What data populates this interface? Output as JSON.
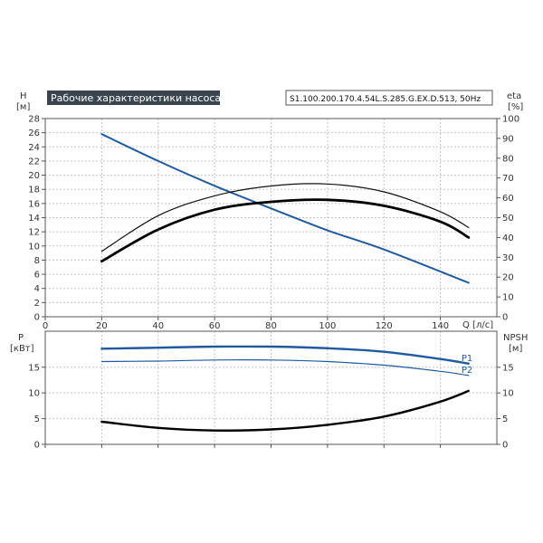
{
  "chart_data": [
    {
      "type": "line",
      "title": "Рабочие характеристики насоса",
      "subtitle": "S1.100.200.170.4.54L.S.285.G.EX.D.513, 50Hz",
      "xlabel": "Q [л/с]",
      "ylabel_left": "H",
      "ylabel_left_unit": "[м]",
      "ylabel_right": "eta",
      "ylabel_right_unit": "[%]",
      "xlim": [
        0,
        160
      ],
      "ylim_left": [
        0,
        28
      ],
      "ylim_right": [
        0,
        100
      ],
      "x_ticks": [
        0,
        20,
        40,
        60,
        80,
        100,
        120,
        140
      ],
      "y_left_ticks": [
        0,
        2,
        4,
        6,
        8,
        10,
        12,
        14,
        16,
        18,
        20,
        22,
        24,
        26,
        28
      ],
      "y_right_ticks": [
        0,
        10,
        20,
        30,
        40,
        50,
        60,
        70,
        80,
        90,
        100
      ],
      "grid": true,
      "series": [
        {
          "axis": "left",
          "color": "#1f5aa0",
          "width": 2,
          "x": [
            20,
            40,
            60,
            80,
            100,
            120,
            150
          ],
          "y": [
            25.8,
            22.0,
            18.5,
            15.3,
            12.2,
            9.5,
            4.8
          ]
        },
        {
          "axis": "right",
          "color": "#111111",
          "width": 1.2,
          "x": [
            20,
            40,
            60,
            80,
            100,
            120,
            140,
            150
          ],
          "y": [
            33,
            51,
            61,
            66,
            67,
            63,
            53,
            45
          ]
        },
        {
          "axis": "right",
          "color": "#000000",
          "width": 2.8,
          "x": [
            20,
            40,
            60,
            80,
            100,
            120,
            140,
            150
          ],
          "y": [
            28,
            44,
            54,
            58,
            59,
            56,
            48,
            40
          ]
        }
      ]
    },
    {
      "type": "line",
      "ylabel_left": "P",
      "ylabel_left_unit": "[кВт]",
      "ylabel_right": "NPSH",
      "ylabel_right_unit": "[м]",
      "xlim": [
        0,
        160
      ],
      "ylim_left": [
        0,
        22
      ],
      "ylim_right": [
        0,
        22
      ],
      "y_left_ticks": [
        0,
        5,
        10,
        15
      ],
      "y_right_ticks": [
        0,
        5,
        10,
        15
      ],
      "grid": true,
      "series": [
        {
          "name": "P1",
          "axis": "left",
          "color": "#1f5aa0",
          "width": 2.4,
          "x": [
            20,
            40,
            60,
            80,
            100,
            120,
            140,
            150
          ],
          "y": [
            18.6,
            18.8,
            19.0,
            19.0,
            18.7,
            18.0,
            16.6,
            15.7
          ]
        },
        {
          "name": "P2",
          "axis": "left",
          "color": "#1f5aa0",
          "width": 1.2,
          "x": [
            20,
            40,
            60,
            80,
            100,
            120,
            140,
            150
          ],
          "y": [
            16.1,
            16.2,
            16.4,
            16.4,
            16.1,
            15.4,
            14.2,
            13.4
          ]
        },
        {
          "axis": "right",
          "color": "#000000",
          "width": 2.4,
          "x": [
            20,
            40,
            60,
            80,
            100,
            120,
            140,
            150
          ],
          "y": [
            4.4,
            3.2,
            2.7,
            2.9,
            3.8,
            5.4,
            8.3,
            10.4
          ]
        }
      ]
    }
  ]
}
